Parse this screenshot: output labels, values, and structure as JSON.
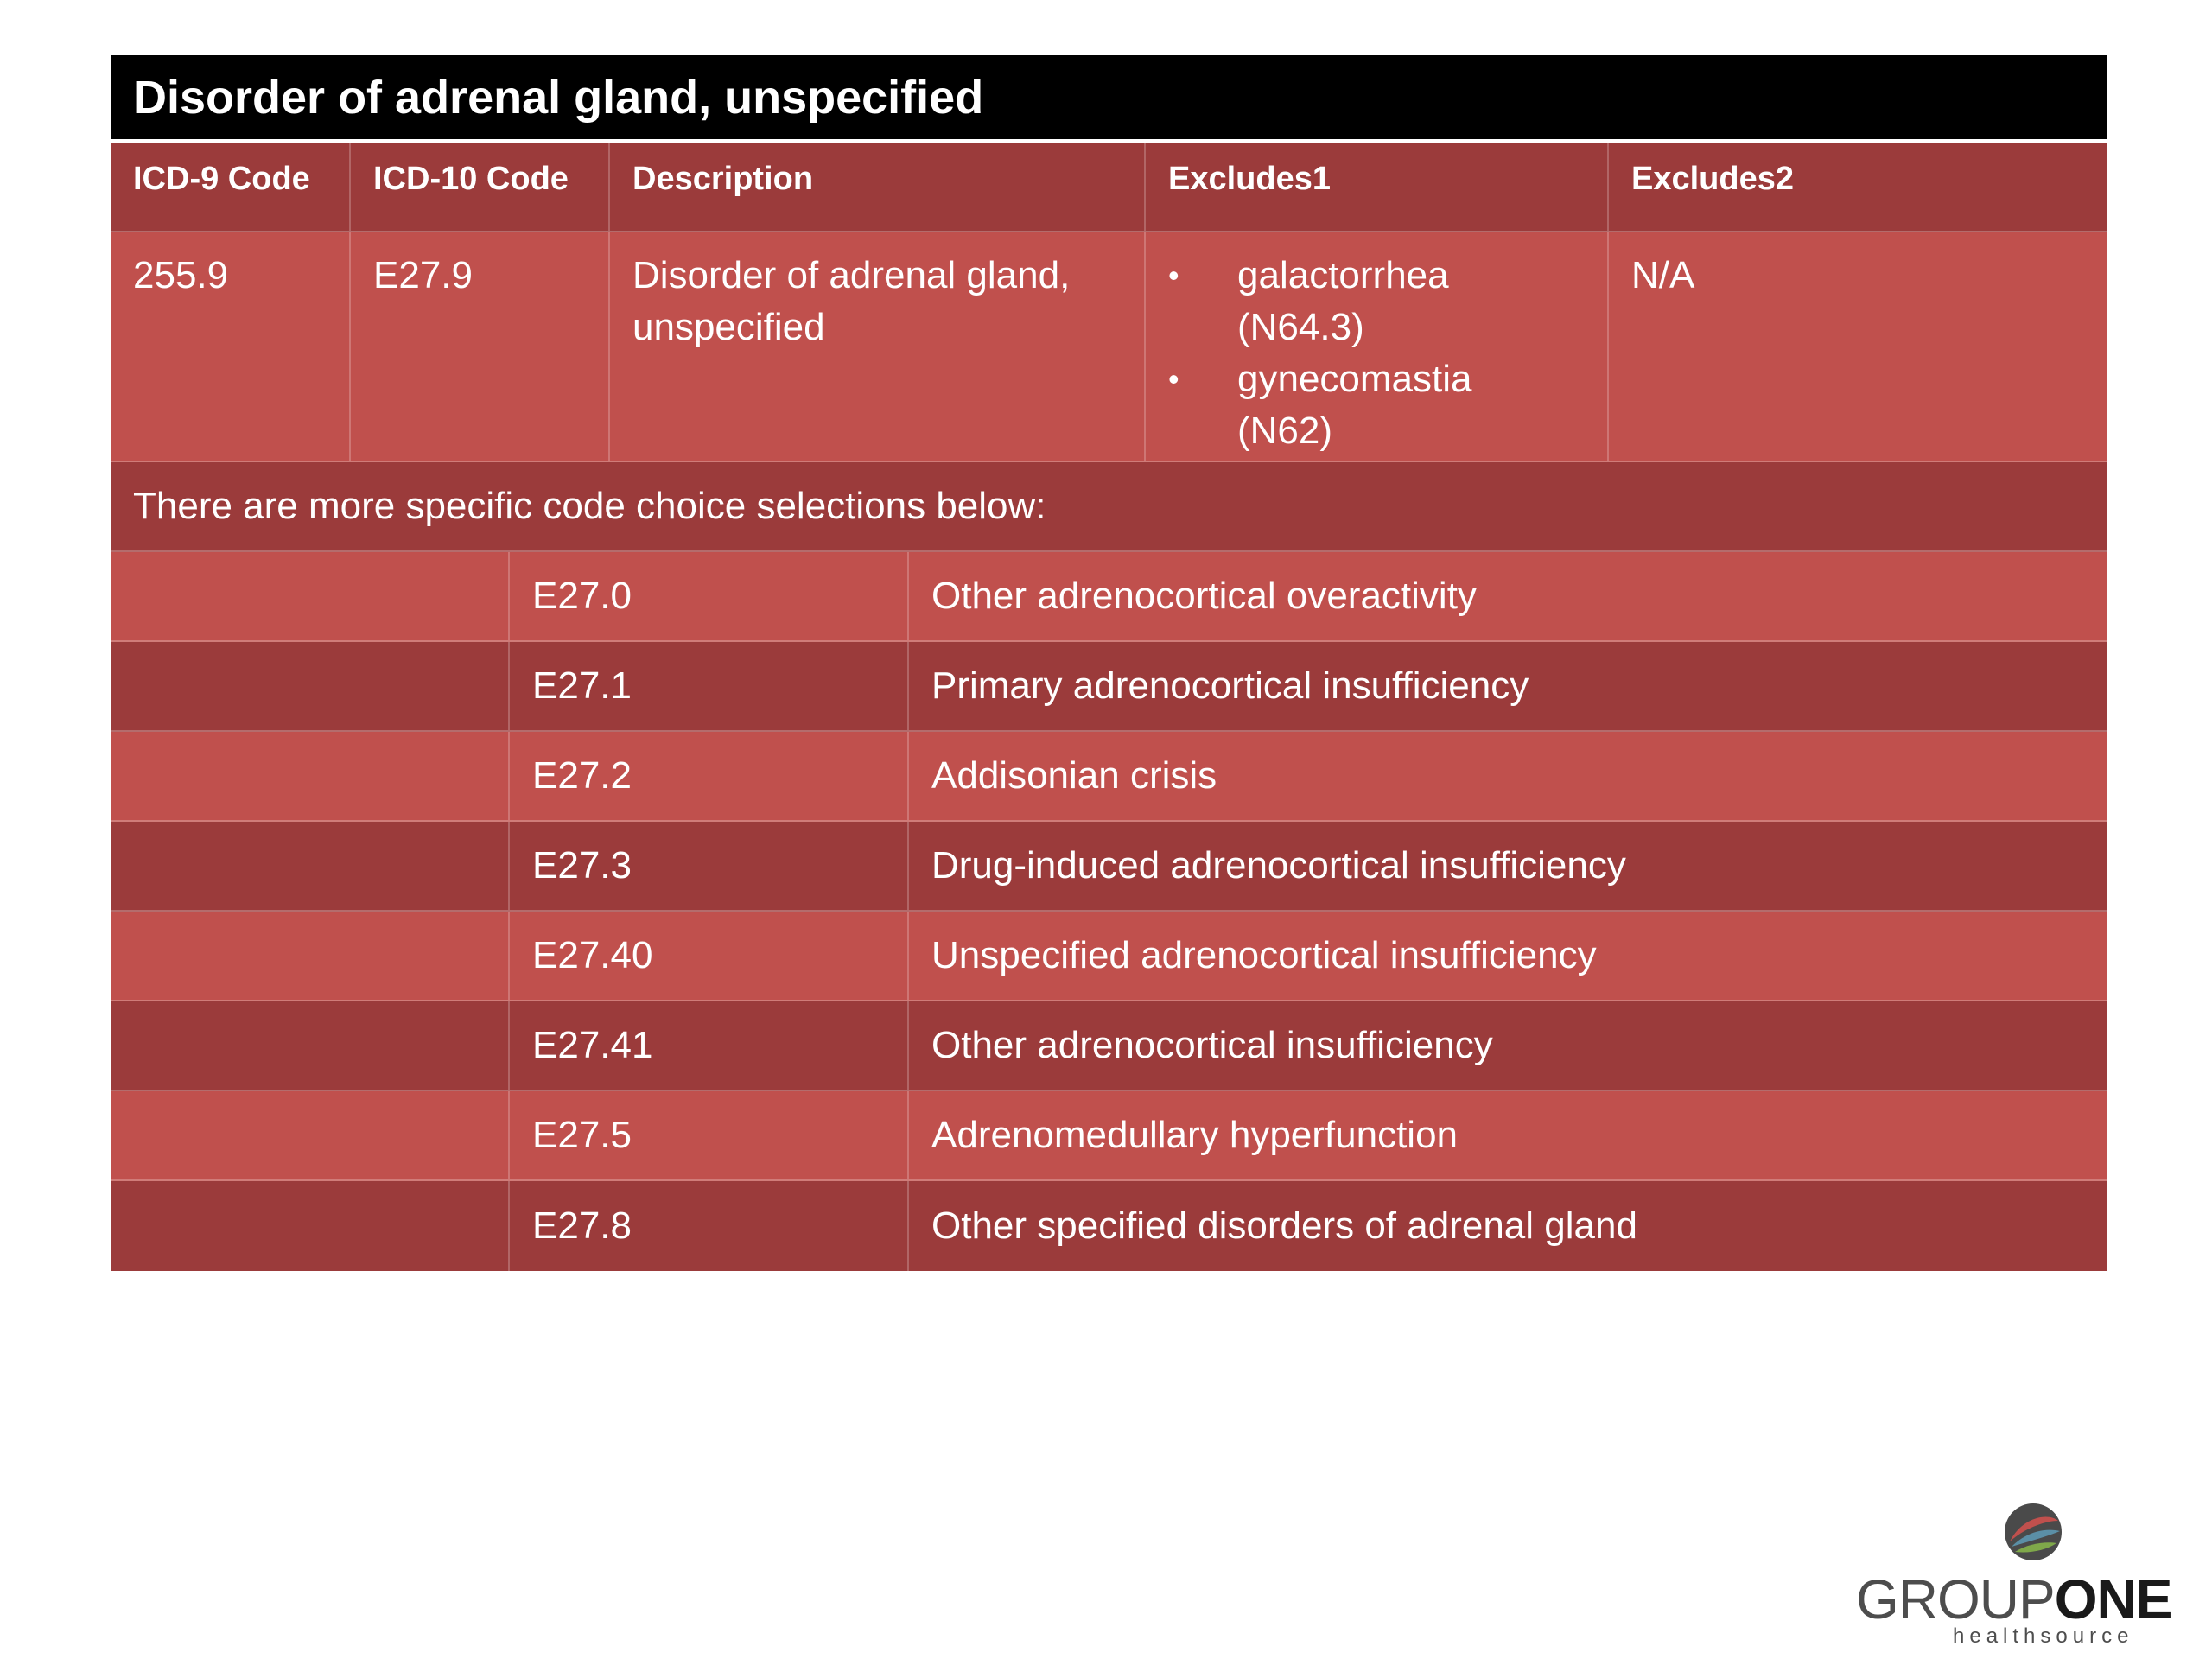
{
  "title": "Disorder of adrenal gland, unspecified",
  "headers": {
    "icd9": "ICD-9 Code",
    "icd10": "ICD-10 Code",
    "description": "Description",
    "excludes1": "Excludes1",
    "excludes2": "Excludes2"
  },
  "main": {
    "icd9": "255.9",
    "icd10": "E27.9",
    "description": "Disorder of adrenal gland, unspecified",
    "excludes1": [
      {
        "name": "galactorrhea",
        "code": "(N64.3)"
      },
      {
        "name": "gynecomastia",
        "code": "(N62)"
      }
    ],
    "excludes2": "N/A"
  },
  "note": "There are more specific code choice selections below:",
  "sub_codes": [
    {
      "code": "E27.0",
      "desc": "Other adrenocortical overactivity"
    },
    {
      "code": "E27.1",
      "desc": "Primary adrenocortical insufficiency"
    },
    {
      "code": "E27.2",
      "desc": "Addisonian crisis"
    },
    {
      "code": "E27.3",
      "desc": "Drug-induced adrenocortical insufficiency"
    },
    {
      "code": "E27.40",
      "desc": "Unspecified adrenocortical insufficiency"
    },
    {
      "code": "E27.41",
      "desc": "Other adrenocortical insufficiency"
    },
    {
      "code": "E27.5",
      "desc": "Adrenomedullary hyperfunction"
    },
    {
      "code": "E27.8",
      "desc": "Other specified disorders of adrenal gland"
    }
  ],
  "logo": {
    "word_light": "GROUP",
    "word_bold": "ONE",
    "tagline": "healthsource"
  },
  "colors": {
    "title_bg": "#000000",
    "row_dark": "#9b3b3b",
    "row_light": "#c0504d"
  }
}
